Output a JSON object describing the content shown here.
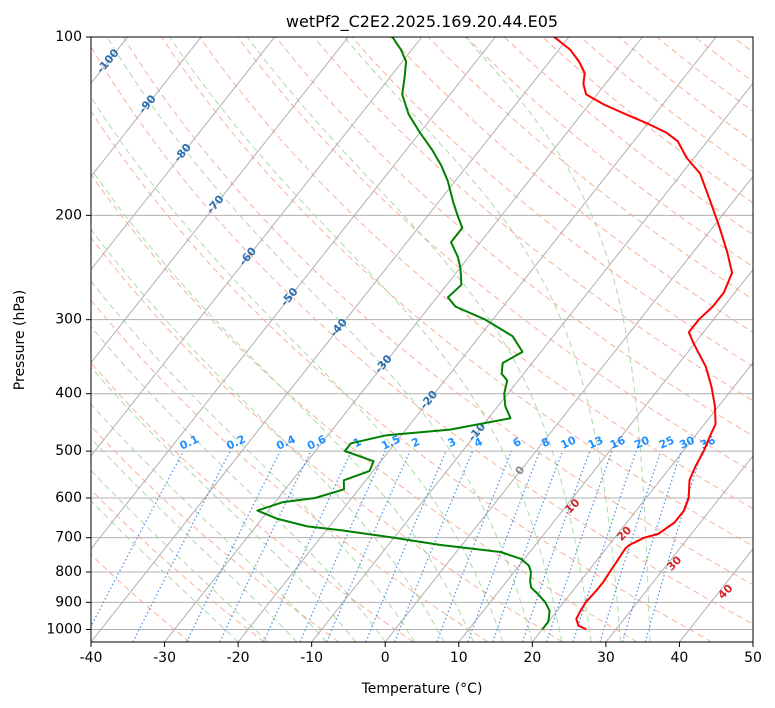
{
  "chart_data": {
    "type": "skew-t",
    "title": "wetPf2_C2E2.2025.169.20.44.E05",
    "xlabel": "Temperature (°C)",
    "ylabel": "Pressure (hPa)",
    "xlim": [
      -40,
      50
    ],
    "ylim": [
      1050,
      100
    ],
    "y_scale": "log",
    "x_ticks": [
      -40,
      -30,
      -20,
      -10,
      0,
      10,
      20,
      30,
      40,
      50
    ],
    "y_ticks": [
      1000,
      900,
      800,
      700,
      600,
      500,
      400,
      300,
      200,
      100
    ],
    "grid": true,
    "background_lines": {
      "isotherms": "gray solid",
      "dry_adiabats": "orange-red dashed",
      "moist_adiabats": "green dashed",
      "mixing_ratio": "blue dotted"
    },
    "colors": {
      "temperature": "#ff0000",
      "dewpoint": "#008000",
      "isotherm": "#b0b0b0",
      "dry_adiabat": "#f4a58a",
      "moist_adiabat": "#9ed49e",
      "mixing_ratio": "#4a90e2",
      "isotherm_label": "#2a6fb0",
      "dry_adiabat_label": "#d62728",
      "mixing_label": "#1e90ff"
    },
    "isotherm_labels": [
      -100,
      -90,
      -80,
      -70,
      -60,
      -50,
      -40,
      -30,
      -20,
      -10,
      0
    ],
    "dry_adiabat_labels": [
      10,
      20,
      30,
      40
    ],
    "mixing_ratio_labels": [
      "0.1",
      "0.2",
      "0.4",
      "0.6",
      "1",
      "1.5",
      "2",
      "3",
      "4",
      "6",
      "8",
      "10",
      "13",
      "16",
      "20",
      "25",
      "30",
      "36"
    ],
    "series": [
      {
        "name": "Temperature",
        "points": [
          [
            1000,
            26.0
          ],
          [
            985,
            24.5
          ],
          [
            960,
            23.5
          ],
          [
            930,
            23.2
          ],
          [
            900,
            23.0
          ],
          [
            860,
            23.2
          ],
          [
            830,
            23.2
          ],
          [
            800,
            23.0
          ],
          [
            760,
            22.8
          ],
          [
            730,
            22.6
          ],
          [
            720,
            22.8
          ],
          [
            700,
            24.0
          ],
          [
            690,
            25.5
          ],
          [
            660,
            26.5
          ],
          [
            630,
            26.5
          ],
          [
            600,
            25.8
          ],
          [
            560,
            24.0
          ],
          [
            530,
            23.3
          ],
          [
            500,
            22.8
          ],
          [
            470,
            22.0
          ],
          [
            450,
            21.5
          ],
          [
            420,
            19.5
          ],
          [
            390,
            17.0
          ],
          [
            360,
            14.0
          ],
          [
            330,
            10.0
          ],
          [
            315,
            8.0
          ],
          [
            300,
            8.0
          ],
          [
            285,
            8.5
          ],
          [
            270,
            8.5
          ],
          [
            250,
            7.5
          ],
          [
            230,
            4.5
          ],
          [
            210,
            1.0
          ],
          [
            190,
            -3.0
          ],
          [
            170,
            -7.5
          ],
          [
            160,
            -11.0
          ],
          [
            150,
            -14.0
          ],
          [
            145,
            -16.5
          ],
          [
            140,
            -20.0
          ],
          [
            135,
            -24.0
          ],
          [
            130,
            -28.0
          ],
          [
            125,
            -31.5
          ],
          [
            120,
            -33.0
          ],
          [
            115,
            -34.0
          ],
          [
            110,
            -36.0
          ],
          [
            105,
            -38.5
          ],
          [
            100,
            -42.0
          ]
        ]
      },
      {
        "name": "Dewpoint",
        "points": [
          [
            1000,
            20.0
          ],
          [
            970,
            20.0
          ],
          [
            930,
            19.0
          ],
          [
            900,
            17.5
          ],
          [
            870,
            15.5
          ],
          [
            850,
            14.0
          ],
          [
            830,
            13.2
          ],
          [
            800,
            12.3
          ],
          [
            780,
            11.3
          ],
          [
            760,
            9.5
          ],
          [
            740,
            6.0
          ],
          [
            720,
            -3.0
          ],
          [
            700,
            -10.0
          ],
          [
            690,
            -14.0
          ],
          [
            680,
            -18.0
          ],
          [
            670,
            -23.0
          ],
          [
            650,
            -28.0
          ],
          [
            630,
            -31.5
          ],
          [
            610,
            -29.0
          ],
          [
            600,
            -25.0
          ],
          [
            580,
            -22.0
          ],
          [
            560,
            -23.0
          ],
          [
            540,
            -20.5
          ],
          [
            520,
            -21.0
          ],
          [
            500,
            -26.0
          ],
          [
            485,
            -26.0
          ],
          [
            470,
            -22.0
          ],
          [
            460,
            -14.0
          ],
          [
            440,
            -7.0
          ],
          [
            420,
            -9.0
          ],
          [
            400,
            -10.5
          ],
          [
            380,
            -11.5
          ],
          [
            370,
            -13.0
          ],
          [
            355,
            -14.0
          ],
          [
            340,
            -12.5
          ],
          [
            320,
            -15.5
          ],
          [
            300,
            -21.0
          ],
          [
            285,
            -26.5
          ],
          [
            275,
            -28.5
          ],
          [
            262,
            -28.0
          ],
          [
            245,
            -30.0
          ],
          [
            235,
            -31.5
          ],
          [
            222,
            -34.0
          ],
          [
            210,
            -34.0
          ],
          [
            200,
            -36.0
          ],
          [
            190,
            -38.0
          ],
          [
            175,
            -41.0
          ],
          [
            165,
            -43.5
          ],
          [
            155,
            -46.5
          ],
          [
            145,
            -50.0
          ],
          [
            135,
            -53.5
          ],
          [
            125,
            -56.5
          ],
          [
            117,
            -58.0
          ],
          [
            110,
            -59.5
          ],
          [
            105,
            -61.5
          ],
          [
            100,
            -64.0
          ]
        ]
      }
    ]
  }
}
